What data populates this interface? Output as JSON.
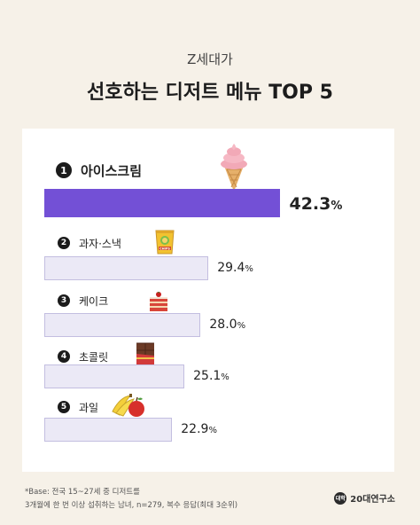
{
  "header": {
    "subtitle": "Z세대가",
    "title": "선호하는 디저트 메뉴 TOP 5"
  },
  "chart_data": {
    "type": "bar",
    "orientation": "horizontal",
    "categories": [
      "아이스크림",
      "과자·스낵",
      "케이크",
      "초콜릿",
      "과일"
    ],
    "values": [
      42.3,
      29.4,
      28.0,
      25.1,
      22.9
    ],
    "value_labels": [
      "42.3",
      "29.4",
      "28.0",
      "25.1",
      "22.9"
    ],
    "unit": "%",
    "ranks": [
      "1",
      "2",
      "3",
      "4",
      "5"
    ],
    "xlim": [
      0,
      50
    ],
    "grid": false,
    "legend": "none",
    "colors": {
      "top": "#7350d6",
      "rest": "#ebe9f6",
      "rest_border": "#c3bee0"
    },
    "icons": [
      "ice-cream-icon",
      "chips-icon",
      "cake-icon",
      "chocolate-icon",
      "fruit-icon"
    ]
  },
  "footnote": {
    "line1": "*Base: 전국 15~27세 중 디저트를",
    "line2": "3개월에 한 번 이상 섭취하는 남녀, n=279, 복수 응답(최대 3순위)"
  },
  "brand": {
    "badge": "대학내일",
    "name": "20대연구소"
  }
}
